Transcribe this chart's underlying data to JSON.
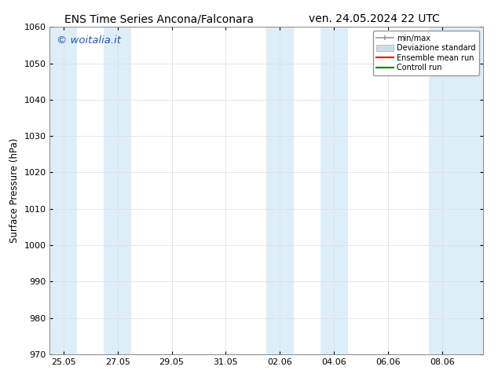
{
  "title_left": "ENS Time Series Ancona/Falconara",
  "title_right": "ven. 24.05.2024 22 UTC",
  "ylabel": "Surface Pressure (hPa)",
  "ylim": [
    970,
    1060
  ],
  "yticks": [
    970,
    980,
    990,
    1000,
    1010,
    1020,
    1030,
    1040,
    1050,
    1060
  ],
  "xtick_labels": [
    "25.05",
    "27.05",
    "29.05",
    "31.05",
    "02.06",
    "04.06",
    "06.06",
    "08.06"
  ],
  "xtick_positions": [
    0,
    2,
    4,
    6,
    8,
    10,
    12,
    14
  ],
  "x_min": -0.5,
  "x_max": 15.5,
  "shaded_bands": [
    {
      "x_start": -0.5,
      "x_end": 0.5,
      "color": "#ddeef8"
    },
    {
      "x_start": 1.5,
      "x_end": 2.5,
      "color": "#ddeef8"
    },
    {
      "x_start": 7.5,
      "x_end": 8.5,
      "color": "#ddeef8"
    },
    {
      "x_start": 9.5,
      "x_end": 10.5,
      "color": "#ddeef8"
    },
    {
      "x_start": 13.5,
      "x_end": 15.5,
      "color": "#ddeef8"
    }
  ],
  "watermark": "© woitalia.it",
  "watermark_color": "#2255bb",
  "legend_items": [
    {
      "label": "min/max"
    },
    {
      "label": "Deviazione standard"
    },
    {
      "label": "Ensemble mean run"
    },
    {
      "label": "Controll run"
    }
  ],
  "bg_color": "#ffffff",
  "grid_color": "#dddddd",
  "title_fontsize": 10,
  "tick_fontsize": 8,
  "ylabel_fontsize": 8.5,
  "watermark_fontsize": 9.5
}
